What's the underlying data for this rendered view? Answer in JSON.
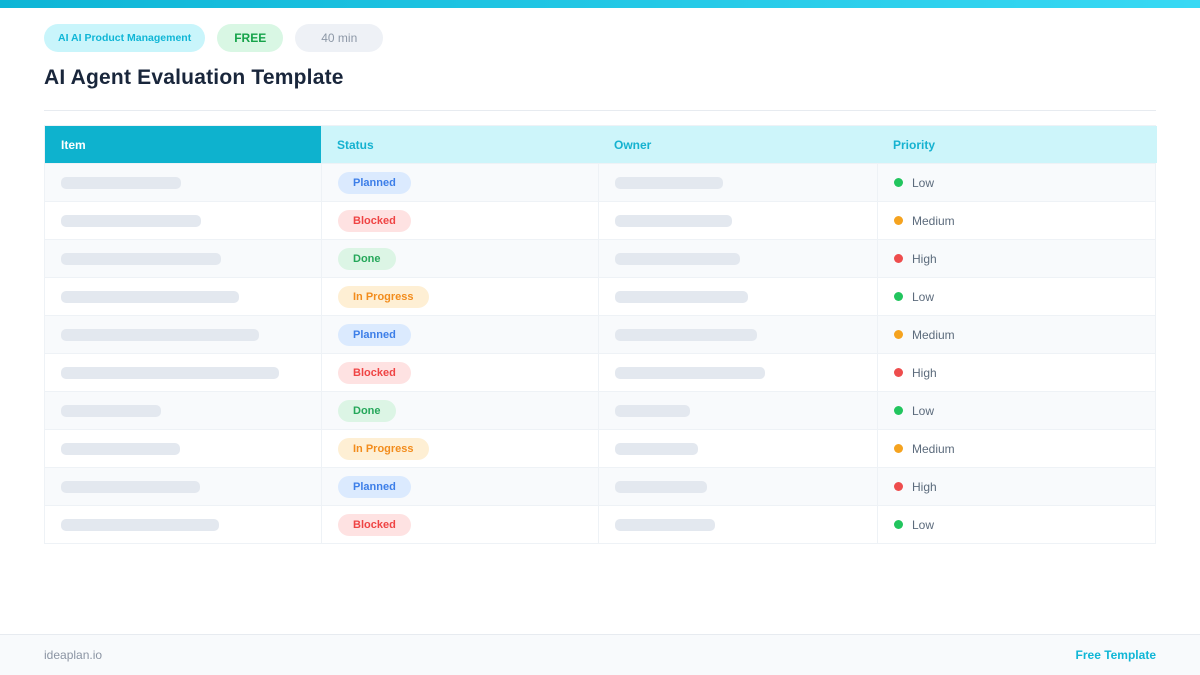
{
  "header": {
    "category_badge": "AI  AI Product Management",
    "free_badge": "FREE",
    "duration_badge": "40 min",
    "title": "AI Agent Evaluation Template"
  },
  "colors": {
    "accent_cyan": "#10b6d6",
    "topbar_gradient_start": "#0db5d6",
    "topbar_gradient_end": "#38d9f4",
    "header_item_bg": "#0eb2ce",
    "header_light_bg": "#cdf5fa",
    "placeholder_bar": "#e3e8ef",
    "status": {
      "planned": {
        "text": "#3c7ee8",
        "bg": "#dbeafe"
      },
      "blocked": {
        "text": "#ef4444",
        "bg": "#fee2e2"
      },
      "done": {
        "text": "#25a75a",
        "bg": "#dcf5e5"
      },
      "in_progress": {
        "text": "#f28c1c",
        "bg": "#feefd4"
      }
    },
    "priority_dots": {
      "green": "#22c55e",
      "orange": "#f5a31f",
      "red": "#ee4d4d"
    }
  },
  "table": {
    "columns": [
      "Item",
      "Status",
      "Owner",
      "Priority"
    ],
    "rows": [
      {
        "status_key": "planned",
        "status": "Planned",
        "priority": "Low",
        "dot": "green",
        "item_w": 120,
        "owner_w": 108
      },
      {
        "status_key": "blocked",
        "status": "Blocked",
        "priority": "Medium",
        "dot": "orange",
        "item_w": 140,
        "owner_w": 117
      },
      {
        "status_key": "done",
        "status": "Done",
        "priority": "High",
        "dot": "red",
        "item_w": 160,
        "owner_w": 125
      },
      {
        "status_key": "in_progress",
        "status": "In Progress",
        "priority": "Low",
        "dot": "green",
        "item_w": 178,
        "owner_w": 133
      },
      {
        "status_key": "planned",
        "status": "Planned",
        "priority": "Medium",
        "dot": "orange",
        "item_w": 198,
        "owner_w": 142
      },
      {
        "status_key": "blocked",
        "status": "Blocked",
        "priority": "High",
        "dot": "red",
        "item_w": 218,
        "owner_w": 150
      },
      {
        "status_key": "done",
        "status": "Done",
        "priority": "Low",
        "dot": "green",
        "item_w": 100,
        "owner_w": 75
      },
      {
        "status_key": "in_progress",
        "status": "In Progress",
        "priority": "Medium",
        "dot": "orange",
        "item_w": 119,
        "owner_w": 83
      },
      {
        "status_key": "planned",
        "status": "Planned",
        "priority": "High",
        "dot": "red",
        "item_w": 139,
        "owner_w": 92
      },
      {
        "status_key": "blocked",
        "status": "Blocked",
        "priority": "Low",
        "dot": "green",
        "item_w": 158,
        "owner_w": 100
      }
    ]
  },
  "footer": {
    "site": "ideaplan.io",
    "link": "Free Template"
  }
}
